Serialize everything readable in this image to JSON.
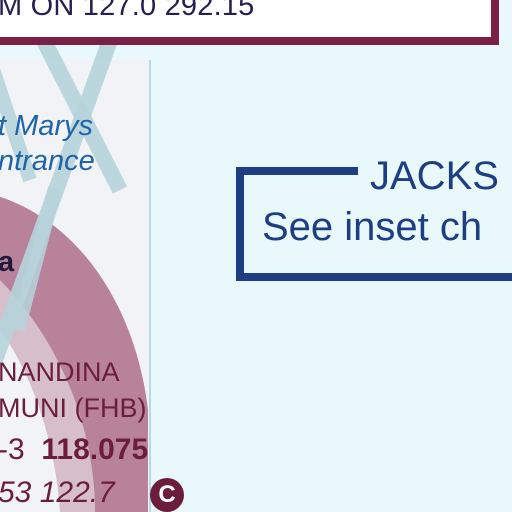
{
  "map": {
    "colors": {
      "water": "#e9f8fb",
      "airspace_band": "#b7d4db",
      "airport_arc": "#8a2550",
      "frame": "#7b1f45",
      "inset_border": "#1e3e84"
    },
    "top_banner": {
      "text": "M ON 127.0  292.15"
    },
    "st_marys_entrance": {
      "line1": "t Marys",
      "line2": "ntrance"
    },
    "fragment": "a",
    "airport": {
      "name": "NANDINA",
      "code_line": "MUNI (FHB)",
      "freq_prefix": "-3",
      "freq_primary": "118.075",
      "freq_secondary": "53 122.7",
      "ctaf_symbol": "C"
    },
    "inset": {
      "title": "JACKS",
      "note": "See inset ch"
    }
  }
}
